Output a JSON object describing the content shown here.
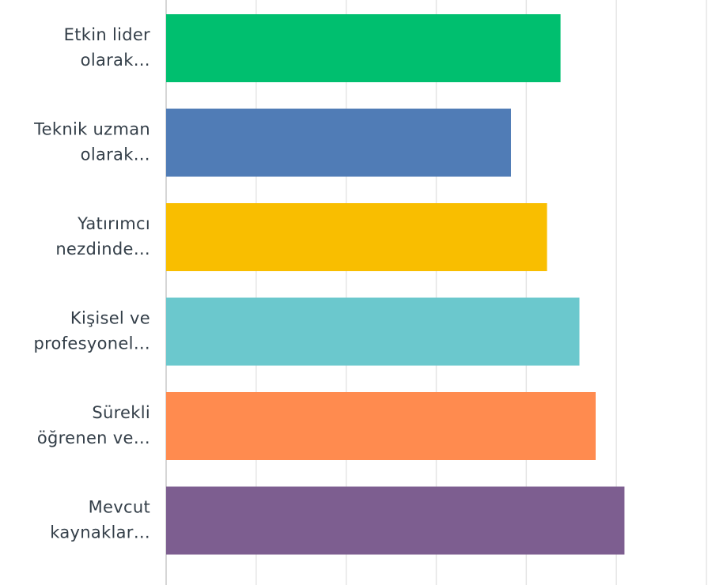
{
  "chart_data": {
    "type": "hbar",
    "categories": [
      [
        "Etkin lider",
        "olarak…"
      ],
      [
        "Teknik uzman",
        "olarak…"
      ],
      [
        "Yatırımcı",
        "nezdinde…"
      ],
      [
        "Kişisel ve",
        "profesyonel…"
      ],
      [
        "Sürekli",
        "öğrenen ve…"
      ],
      [
        "Mevcut",
        "kaynaklar…"
      ]
    ],
    "values": [
      4.38,
      3.83,
      4.23,
      4.59,
      4.77,
      5.09
    ],
    "colors": [
      "#00bf6f",
      "#507cb6",
      "#f9be00",
      "#6bc8cd",
      "#ff8b4f",
      "#7d5e90"
    ],
    "xlim": [
      0,
      6
    ],
    "xticks": [
      0,
      1,
      2,
      3,
      4,
      5,
      6
    ],
    "grid": true
  }
}
